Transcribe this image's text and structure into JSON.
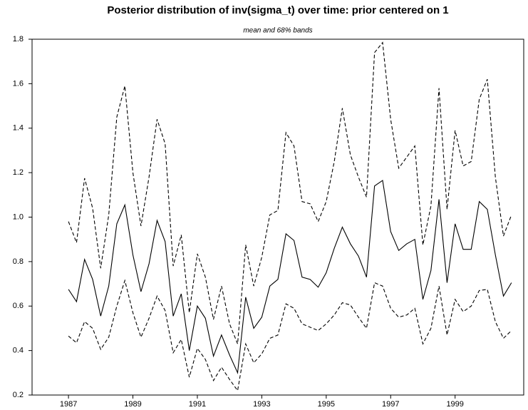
{
  "chart_data": {
    "type": "line",
    "title": "Posterior distribution of inv(sigma_t) over time: prior centered on 1",
    "subtitle": "mean and 68% bands",
    "x": [
      1987,
      1987.25,
      1987.5,
      1987.75,
      1988,
      1988.25,
      1988.5,
      1988.75,
      1989,
      1989.25,
      1989.5,
      1989.75,
      1990,
      1990.25,
      1990.5,
      1990.75,
      1991,
      1991.25,
      1991.5,
      1991.75,
      1992,
      1992.25,
      1992.5,
      1992.75,
      1993,
      1993.25,
      1993.5,
      1993.75,
      1994,
      1994.25,
      1994.5,
      1994.75,
      1995,
      1995.25,
      1995.5,
      1995.75,
      1996,
      1996.25,
      1996.5,
      1996.75,
      1997,
      1997.25,
      1997.5,
      1997.75,
      1998,
      1998.25,
      1998.5,
      1998.75,
      1999,
      1999.25,
      1999.5,
      1999.75,
      2000,
      2000.25,
      2000.5,
      2000.75
    ],
    "series": [
      {
        "color": "#000000",
        "dashed": false,
        "values": [
          0.675,
          0.62,
          0.81,
          0.72,
          0.555,
          0.69,
          0.97,
          1.055,
          0.83,
          0.665,
          0.79,
          0.985,
          0.89,
          0.555,
          0.655,
          0.4,
          0.6,
          0.545,
          0.375,
          0.47,
          0.38,
          0.3,
          0.64,
          0.5,
          0.55,
          0.69,
          0.72,
          0.925,
          0.895,
          0.73,
          0.72,
          0.685,
          0.75,
          0.86,
          0.955,
          0.88,
          0.825,
          0.73,
          1.14,
          1.165,
          0.935,
          0.85,
          0.88,
          0.9,
          0.63,
          0.76,
          1.08,
          0.705,
          0.97,
          0.855,
          0.855,
          1.07,
          1.035,
          0.83,
          0.645,
          0.705
        ]
      },
      {
        "color": "#000000",
        "dashed": true,
        "values": [
          0.98,
          0.885,
          1.175,
          1.04,
          0.77,
          1.01,
          1.45,
          1.59,
          1.2,
          0.96,
          1.18,
          1.44,
          1.33,
          0.78,
          0.92,
          0.57,
          0.835,
          0.73,
          0.54,
          0.69,
          0.52,
          0.43,
          0.875,
          0.69,
          0.82,
          1.01,
          1.03,
          1.38,
          1.32,
          1.07,
          1.06,
          0.98,
          1.07,
          1.25,
          1.49,
          1.28,
          1.18,
          1.09,
          1.74,
          1.785,
          1.44,
          1.22,
          1.27,
          1.32,
          0.875,
          1.05,
          1.58,
          1.035,
          1.39,
          1.23,
          1.25,
          1.53,
          1.62,
          1.18,
          0.915,
          1.01
        ]
      },
      {
        "color": "#000000",
        "dashed": true,
        "values": [
          0.465,
          0.435,
          0.53,
          0.5,
          0.405,
          0.46,
          0.6,
          0.715,
          0.57,
          0.46,
          0.545,
          0.645,
          0.58,
          0.39,
          0.45,
          0.28,
          0.41,
          0.36,
          0.265,
          0.325,
          0.27,
          0.22,
          0.43,
          0.345,
          0.385,
          0.455,
          0.47,
          0.61,
          0.59,
          0.52,
          0.505,
          0.49,
          0.52,
          0.56,
          0.615,
          0.605,
          0.55,
          0.5,
          0.705,
          0.69,
          0.59,
          0.55,
          0.56,
          0.59,
          0.43,
          0.5,
          0.69,
          0.47,
          0.63,
          0.575,
          0.6,
          0.67,
          0.675,
          0.53,
          0.455,
          0.49
        ]
      }
    ],
    "xlim": [
      1985.87,
      2001.13
    ],
    "xticks": [
      1987,
      1989,
      1991,
      1993,
      1995,
      1997,
      1999
    ],
    "ylim": [
      0.2,
      1.8
    ],
    "yticks": [
      {
        "value": 0.2,
        "label": "0.2"
      },
      {
        "value": 0.4,
        "label": "0.4"
      },
      {
        "value": 0.6,
        "label": "0.6"
      },
      {
        "value": 0.8,
        "label": "0.8"
      },
      {
        "value": 1.0,
        "label": "1.0"
      },
      {
        "value": 1.2,
        "label": "1.2"
      },
      {
        "value": 1.4,
        "label": "1.4"
      },
      {
        "value": 1.6,
        "label": "1.6"
      },
      {
        "value": 1.8,
        "label": "1.8"
      }
    ]
  }
}
